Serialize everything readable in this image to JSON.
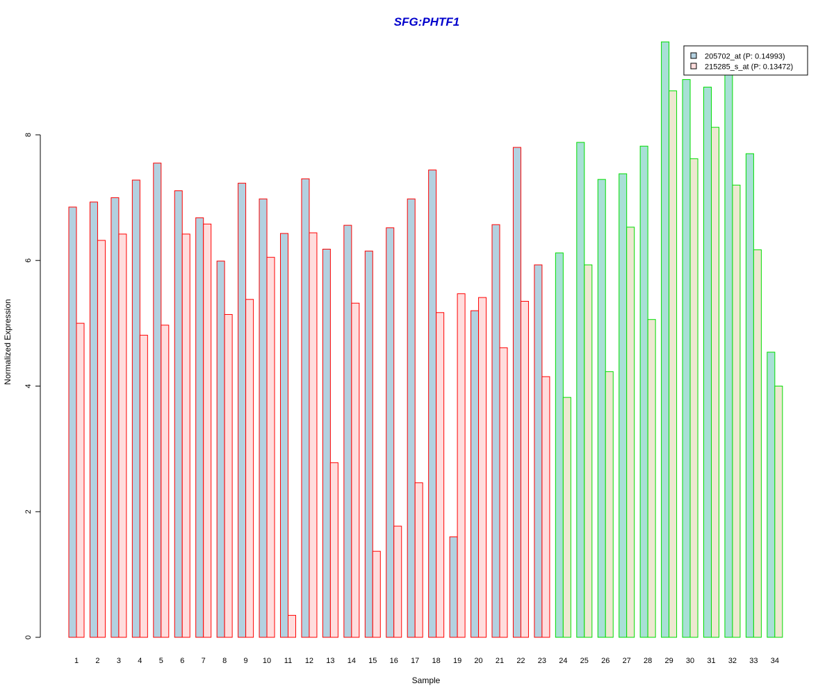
{
  "chart_data": {
    "type": "bar",
    "title": "SFG:PHTF1",
    "title_color": "#0000cc",
    "xlabel": "Sample",
    "ylabel": "Normalized Expression",
    "ylim": [
      0,
      9.5
    ],
    "yticks": [
      0,
      2,
      4,
      6,
      8
    ],
    "grid": false,
    "legend_position": "top-right",
    "categories": [
      "1",
      "2",
      "3",
      "4",
      "5",
      "6",
      "7",
      "8",
      "9",
      "10",
      "11",
      "12",
      "13",
      "14",
      "15",
      "16",
      "17",
      "18",
      "19",
      "20",
      "21",
      "22",
      "23",
      "24",
      "25",
      "26",
      "27",
      "28",
      "29",
      "30",
      "31",
      "32",
      "33",
      "34"
    ],
    "groups": [
      {
        "samples": "1-23",
        "border_color": "#ff0000"
      },
      {
        "samples": "24-34",
        "border_color": "#00dd00"
      }
    ],
    "series": [
      {
        "name": "205702_at (P: 0.14993)",
        "fill_colors": [
          "#b3d1e0",
          "#a8e0d6"
        ],
        "values": [
          6.85,
          6.93,
          7.0,
          7.28,
          7.55,
          7.11,
          6.68,
          5.99,
          7.23,
          6.98,
          6.43,
          7.3,
          6.18,
          6.56,
          6.15,
          6.52,
          6.98,
          7.44,
          1.6,
          5.2,
          6.57,
          7.8,
          5.93,
          6.12,
          7.88,
          7.29,
          7.38,
          7.82,
          9.48,
          8.88,
          8.76,
          8.98,
          7.7,
          4.54
        ]
      },
      {
        "name": "215285_s_at (P: 0.13472)",
        "fill_colors": [
          "#ffdddd",
          "#ede8d0"
        ],
        "values": [
          5.0,
          6.32,
          6.42,
          4.81,
          4.97,
          6.42,
          6.58,
          5.14,
          5.38,
          6.05,
          0.35,
          6.44,
          2.78,
          5.32,
          1.37,
          1.77,
          2.46,
          5.17,
          5.47,
          5.41,
          4.61,
          5.35,
          4.15,
          3.82,
          5.93,
          4.23,
          6.53,
          5.06,
          8.7,
          7.62,
          8.12,
          7.2,
          6.17,
          4.0
        ]
      }
    ]
  }
}
